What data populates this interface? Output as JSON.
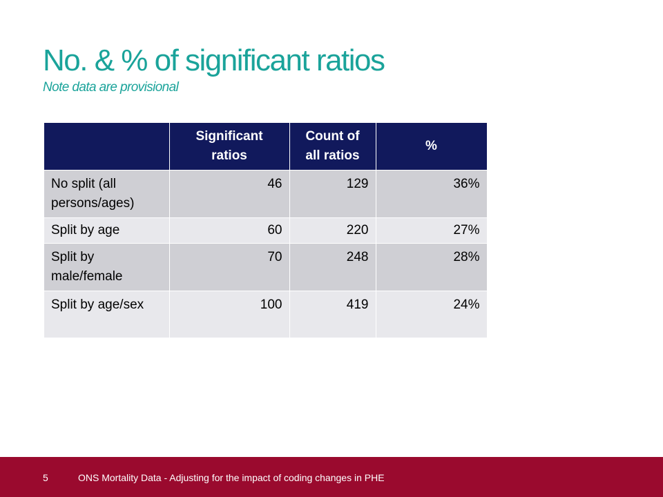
{
  "slide": {
    "title": "No. & % of significant ratios",
    "subtitle": "Note data are provisional"
  },
  "table": {
    "headers": [
      "",
      "Significant ratios",
      "Count of all ratios",
      "%"
    ],
    "rows": [
      {
        "label": "No split (all persons/ages)",
        "significant": "46",
        "count": "129",
        "percent": "36%"
      },
      {
        "label": "Split by age",
        "significant": "60",
        "count": "220",
        "percent": "27%"
      },
      {
        "label": "Split by male/female",
        "significant": "70",
        "count": "248",
        "percent": "28%"
      },
      {
        "label": "Split by age/sex",
        "significant": "100",
        "count": "419",
        "percent": "24%"
      }
    ]
  },
  "footer": {
    "page_number": "5",
    "text": "ONS Mortality Data - Adjusting for the impact of coding changes in PHE"
  },
  "colors": {
    "title": "#1aa39a",
    "table_header": "#11195c",
    "row_odd": "#cfcfd4",
    "row_even": "#e8e8ec",
    "footer_bar": "#9a0a2e"
  }
}
